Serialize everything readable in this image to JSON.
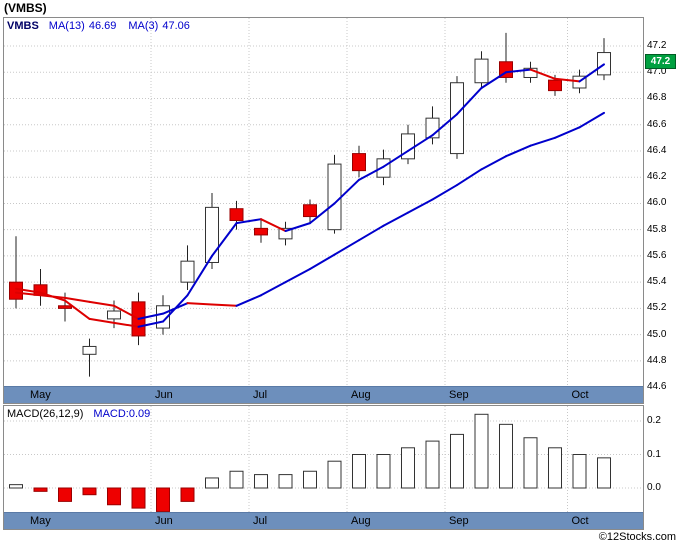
{
  "title": "(VMBS)",
  "footer_credit": "©12Stocks.com",
  "months": [
    "May",
    "Jun",
    "Jul",
    "Aug",
    "Sep",
    "Oct"
  ],
  "main_chart": {
    "legend": {
      "symbol": "VMBS",
      "ma13_label": "MA(13)",
      "ma13_value": "46.69",
      "ma3_label": "MA(3)",
      "ma3_value": "47.06"
    },
    "price_badge": "47.2",
    "y_ticks": [
      "47.2",
      "47.0",
      "46.8",
      "46.6",
      "46.4",
      "46.2",
      "46.0",
      "45.8",
      "45.6",
      "45.4",
      "45.2",
      "45.0",
      "44.8",
      "44.6"
    ]
  },
  "macd_chart": {
    "legend": {
      "label": "MACD(26,12,9)",
      "value": "MACD:0.09"
    },
    "y_ticks": [
      "0.2",
      "0.1",
      "0.0"
    ]
  },
  "colors": {
    "up_candle_fill": "#ffffff",
    "up_candle_stroke": "#333333",
    "down_candle_fill": "#ee0000",
    "down_candle_stroke": "#990000",
    "ma_rising": "#0000cc",
    "ma_falling": "#dd0000",
    "grid": "#c8c8c8",
    "wick": "#222222",
    "macd_pos_fill": "#ffffff",
    "macd_pos_stroke": "#333333",
    "macd_neg_fill": "#ee0000",
    "macd_neg_stroke": "#990000",
    "badge_bg": "#00a040",
    "strip_bg": "#6d8fbc"
  },
  "chart_data": {
    "type": "candlestick+macd",
    "symbol": "VMBS",
    "x_months": [
      "May",
      "Jun",
      "Jul",
      "Aug",
      "Sep",
      "Oct"
    ],
    "month_start_index": [
      0,
      6,
      10,
      14,
      18,
      23
    ],
    "price_panel": {
      "ylim": [
        44.6,
        47.2
      ],
      "y_tick_values": [
        47.2,
        47.0,
        46.8,
        46.6,
        46.4,
        46.2,
        46.0,
        45.8,
        45.6,
        45.4,
        45.2,
        45.0,
        44.8,
        44.6
      ],
      "last_price": 47.2,
      "ma13_last": 46.69,
      "ma3_last": 47.06,
      "candles_ohlc": [
        [
          45.4,
          45.75,
          45.2,
          45.27
        ],
        [
          45.38,
          45.5,
          45.22,
          45.3
        ],
        [
          45.22,
          45.32,
          45.1,
          45.2
        ],
        [
          44.85,
          44.97,
          44.68,
          44.91
        ],
        [
          45.12,
          45.26,
          45.05,
          45.18
        ],
        [
          45.25,
          45.32,
          44.92,
          44.99
        ],
        [
          45.05,
          45.3,
          45.0,
          45.22
        ],
        [
          45.4,
          45.68,
          45.34,
          45.56
        ],
        [
          45.55,
          46.08,
          45.5,
          45.97
        ],
        [
          45.96,
          46.02,
          45.8,
          45.87
        ],
        [
          45.81,
          45.88,
          45.7,
          45.76
        ],
        [
          45.73,
          45.86,
          45.68,
          45.81
        ],
        [
          45.99,
          46.03,
          45.85,
          45.9
        ],
        [
          45.8,
          46.37,
          45.77,
          46.3
        ],
        [
          46.38,
          46.44,
          46.2,
          46.25
        ],
        [
          46.2,
          46.41,
          46.14,
          46.34
        ],
        [
          46.34,
          46.6,
          46.3,
          46.53
        ],
        [
          46.5,
          46.74,
          46.45,
          46.65
        ],
        [
          46.38,
          46.97,
          46.34,
          46.92
        ],
        [
          46.92,
          47.16,
          46.88,
          47.1
        ],
        [
          47.08,
          47.3,
          46.92,
          46.96
        ],
        [
          46.96,
          47.08,
          46.92,
          47.03
        ],
        [
          46.94,
          46.98,
          46.82,
          46.86
        ],
        [
          46.88,
          47.02,
          46.84,
          46.97
        ],
        [
          46.98,
          47.26,
          46.94,
          47.15
        ]
      ],
      "ma13": [
        45.32,
        45.3,
        45.28,
        45.25,
        45.22,
        45.12,
        45.16,
        45.24,
        45.23,
        45.22,
        45.3,
        45.4,
        45.5,
        45.61,
        45.72,
        45.83,
        45.93,
        46.03,
        46.14,
        46.26,
        46.36,
        46.44,
        46.5,
        46.58,
        46.69
      ],
      "ma3": [
        45.35,
        45.32,
        45.26,
        45.12,
        45.09,
        45.06,
        45.1,
        45.3,
        45.6,
        45.85,
        45.88,
        45.79,
        45.85,
        46.0,
        46.18,
        46.28,
        46.4,
        46.52,
        46.68,
        46.88,
        47.0,
        47.02,
        46.95,
        46.93,
        47.06
      ]
    },
    "macd_panel": {
      "params": "26,12,9",
      "last_value": 0.09,
      "ylim": [
        -0.08,
        0.25
      ],
      "y_tick_values": [
        0.2,
        0.1,
        0.0
      ],
      "values": [
        0.01,
        -0.01,
        -0.04,
        -0.02,
        -0.05,
        -0.06,
        -0.07,
        -0.04,
        0.03,
        0.05,
        0.04,
        0.04,
        0.05,
        0.08,
        0.1,
        0.1,
        0.12,
        0.14,
        0.16,
        0.22,
        0.19,
        0.15,
        0.12,
        0.1,
        0.09
      ]
    }
  }
}
